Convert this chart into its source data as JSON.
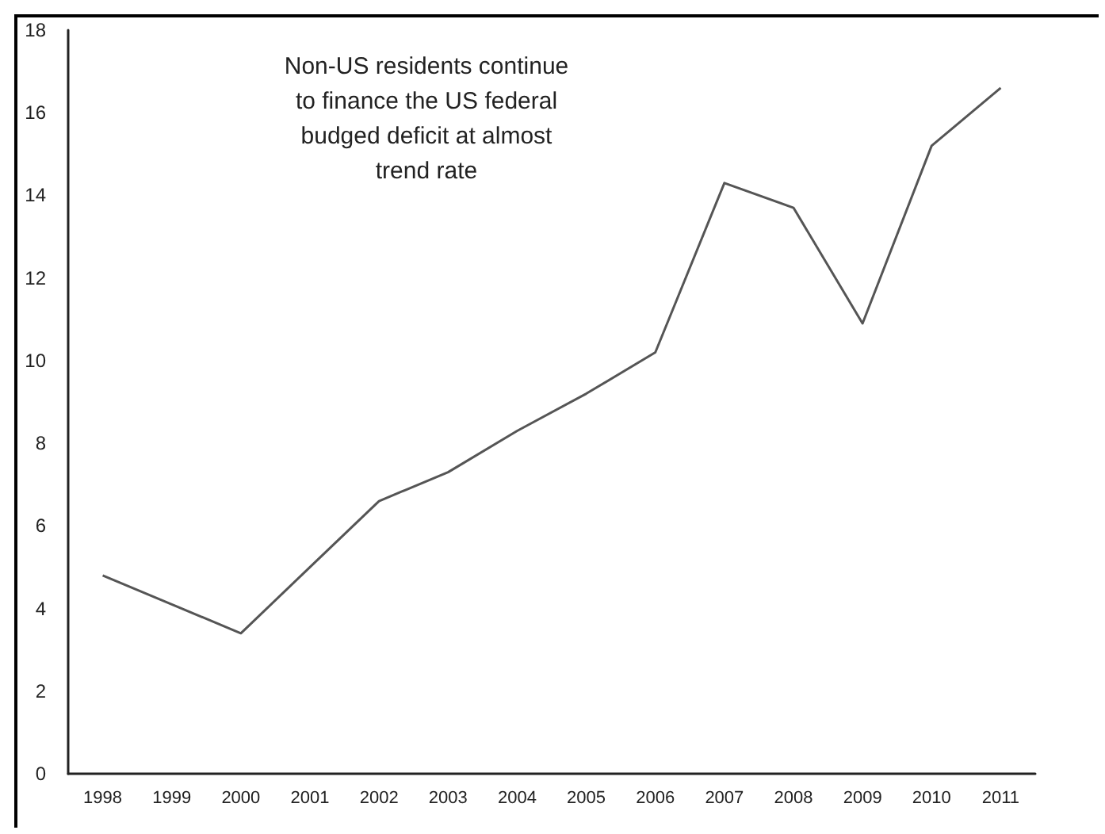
{
  "chart_data": {
    "type": "line",
    "categories": [
      "1998",
      "1999",
      "2000",
      "2001",
      "2002",
      "2003",
      "2004",
      "2005",
      "2006",
      "2007",
      "2008",
      "2009",
      "2010",
      "2011"
    ],
    "values": [
      4.8,
      4.1,
      3.4,
      5.0,
      6.6,
      7.3,
      8.3,
      9.2,
      10.2,
      14.3,
      13.7,
      10.9,
      15.2,
      16.6
    ],
    "color": "#555555",
    "ylim": [
      0,
      18
    ],
    "yticks": [
      0,
      2,
      4,
      6,
      8,
      10,
      12,
      14,
      16,
      18
    ],
    "annotations": [
      "Non-US residents continue\nto finance the US federal\nbudged deficit at almost\ntrend rate"
    ],
    "grid": false,
    "marker": "none",
    "line_style": "solid"
  }
}
